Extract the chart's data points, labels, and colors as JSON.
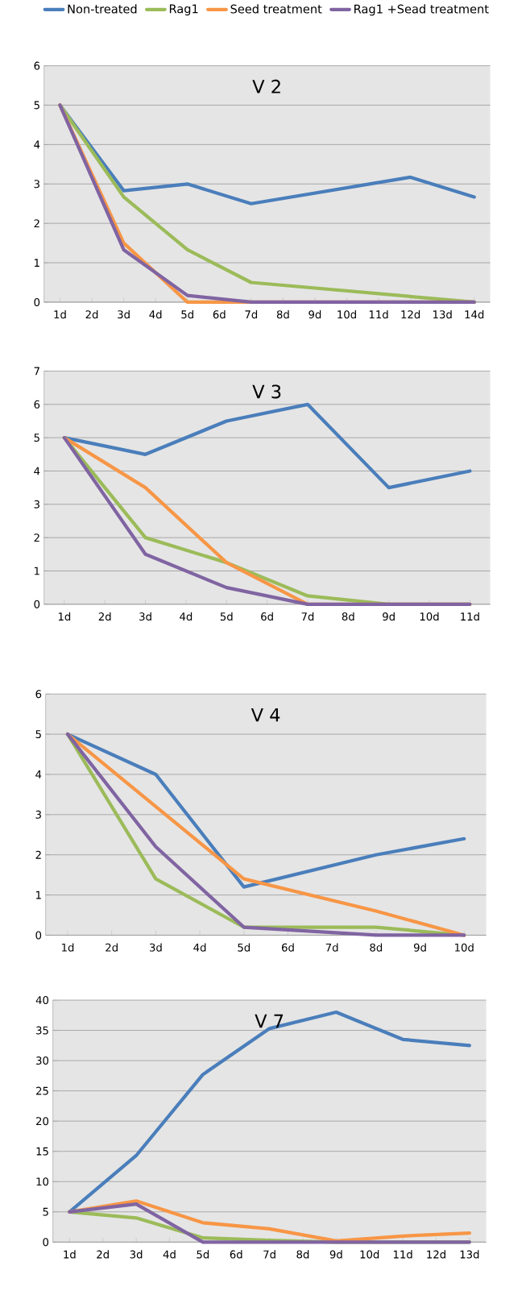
{
  "chart_data": [
    {
      "type": "line",
      "title": "V 2",
      "categories": [
        "1d",
        "2d",
        "3d",
        "4d",
        "5d",
        "6d",
        "7d",
        "8d",
        "9d",
        "10d",
        "11d",
        "12d",
        "13d",
        "14d"
      ],
      "ylim": [
        0,
        6
      ],
      "yticks": [
        0,
        1,
        2,
        3,
        4,
        5,
        6
      ],
      "grid": "y",
      "legend": "top",
      "marker": "none",
      "line_style": "solid",
      "series": [
        {
          "name": "Non-treated",
          "color": "#4a7ebb",
          "values": [
            5,
            null,
            2.83,
            null,
            3,
            null,
            2.5,
            null,
            null,
            null,
            null,
            3.17,
            null,
            2.67
          ]
        },
        {
          "name": "Rag1",
          "color": "#9bbb59",
          "values": [
            5,
            null,
            2.67,
            null,
            1.33,
            null,
            0.5,
            null,
            null,
            null,
            null,
            null,
            null,
            0
          ]
        },
        {
          "name": "Seed treatment",
          "color": "#f79646",
          "values": [
            5,
            null,
            1.5,
            null,
            0,
            null,
            0,
            null,
            null,
            null,
            null,
            null,
            null,
            0
          ]
        },
        {
          "name": "Rag1 +Sead treatment",
          "color": "#8064a2",
          "values": [
            5,
            null,
            1.33,
            null,
            0.17,
            null,
            0,
            null,
            null,
            null,
            null,
            null,
            null,
            0
          ]
        }
      ]
    },
    {
      "type": "line",
      "title": "V 3",
      "categories": [
        "1d",
        "2d",
        "3d",
        "4d",
        "5d",
        "6d",
        "7d",
        "8d",
        "9d",
        "10d",
        "11d"
      ],
      "ylim": [
        0,
        7
      ],
      "yticks": [
        0,
        1,
        2,
        3,
        4,
        5,
        6,
        7
      ],
      "grid": "y",
      "marker": "none",
      "line_style": "solid",
      "series": [
        {
          "color": "#4a7ebb",
          "values": [
            5,
            null,
            4.5,
            null,
            5.5,
            null,
            6,
            null,
            3.5,
            null,
            4
          ]
        },
        {
          "color": "#9bbb59",
          "values": [
            5,
            null,
            2,
            null,
            1.25,
            null,
            0.25,
            null,
            0,
            null,
            0
          ]
        },
        {
          "color": "#f79646",
          "values": [
            5,
            null,
            3.5,
            null,
            1.25,
            null,
            0,
            null,
            0,
            null,
            0
          ]
        },
        {
          "color": "#8064a2",
          "values": [
            5,
            null,
            1.5,
            null,
            0.5,
            null,
            0,
            null,
            0,
            null,
            0
          ]
        }
      ]
    },
    {
      "type": "line",
      "title": "V 4",
      "categories": [
        "1d",
        "2d",
        "3d",
        "4d",
        "5d",
        "6d",
        "7d",
        "8d",
        "9d",
        "10d"
      ],
      "ylim": [
        0,
        6
      ],
      "yticks": [
        0,
        1,
        2,
        3,
        4,
        5,
        6
      ],
      "grid": "y",
      "marker": "none",
      "line_style": "solid",
      "series": [
        {
          "color": "#4a7ebb",
          "values": [
            5,
            null,
            4,
            null,
            1.2,
            null,
            null,
            2,
            null,
            2.4
          ]
        },
        {
          "color": "#9bbb59",
          "values": [
            5,
            null,
            1.4,
            null,
            0.2,
            null,
            null,
            0.2,
            null,
            0
          ]
        },
        {
          "color": "#f79646",
          "values": [
            5,
            null,
            null,
            null,
            1.4,
            null,
            null,
            0.6,
            null,
            0
          ]
        },
        {
          "color": "#8064a2",
          "values": [
            5,
            null,
            2.2,
            null,
            0.2,
            null,
            null,
            0,
            null,
            0
          ]
        }
      ]
    },
    {
      "type": "line",
      "title": "V 7",
      "categories": [
        "1d",
        "2d",
        "3d",
        "4d",
        "5d",
        "6d",
        "7d",
        "8d",
        "9d",
        "10d",
        "11d",
        "12d",
        "13d"
      ],
      "ylim": [
        0,
        40
      ],
      "yticks": [
        0,
        5,
        10,
        15,
        20,
        25,
        30,
        35,
        40
      ],
      "grid": "y",
      "marker": "none",
      "line_style": "solid",
      "series": [
        {
          "color": "#4a7ebb",
          "values": [
            5,
            null,
            14.3,
            null,
            27.7,
            null,
            35.3,
            null,
            38,
            null,
            33.5,
            null,
            32.5
          ]
        },
        {
          "color": "#9bbb59",
          "values": [
            5,
            null,
            4,
            null,
            0.7,
            null,
            0.3,
            null,
            0,
            null,
            null,
            null,
            0
          ]
        },
        {
          "color": "#f79646",
          "values": [
            5,
            null,
            6.8,
            null,
            3.2,
            null,
            2.2,
            null,
            0.2,
            null,
            1,
            null,
            1.5
          ]
        },
        {
          "color": "#8064a2",
          "values": [
            5,
            null,
            6.3,
            null,
            0,
            null,
            0,
            null,
            0,
            null,
            null,
            null,
            0
          ]
        }
      ]
    }
  ]
}
